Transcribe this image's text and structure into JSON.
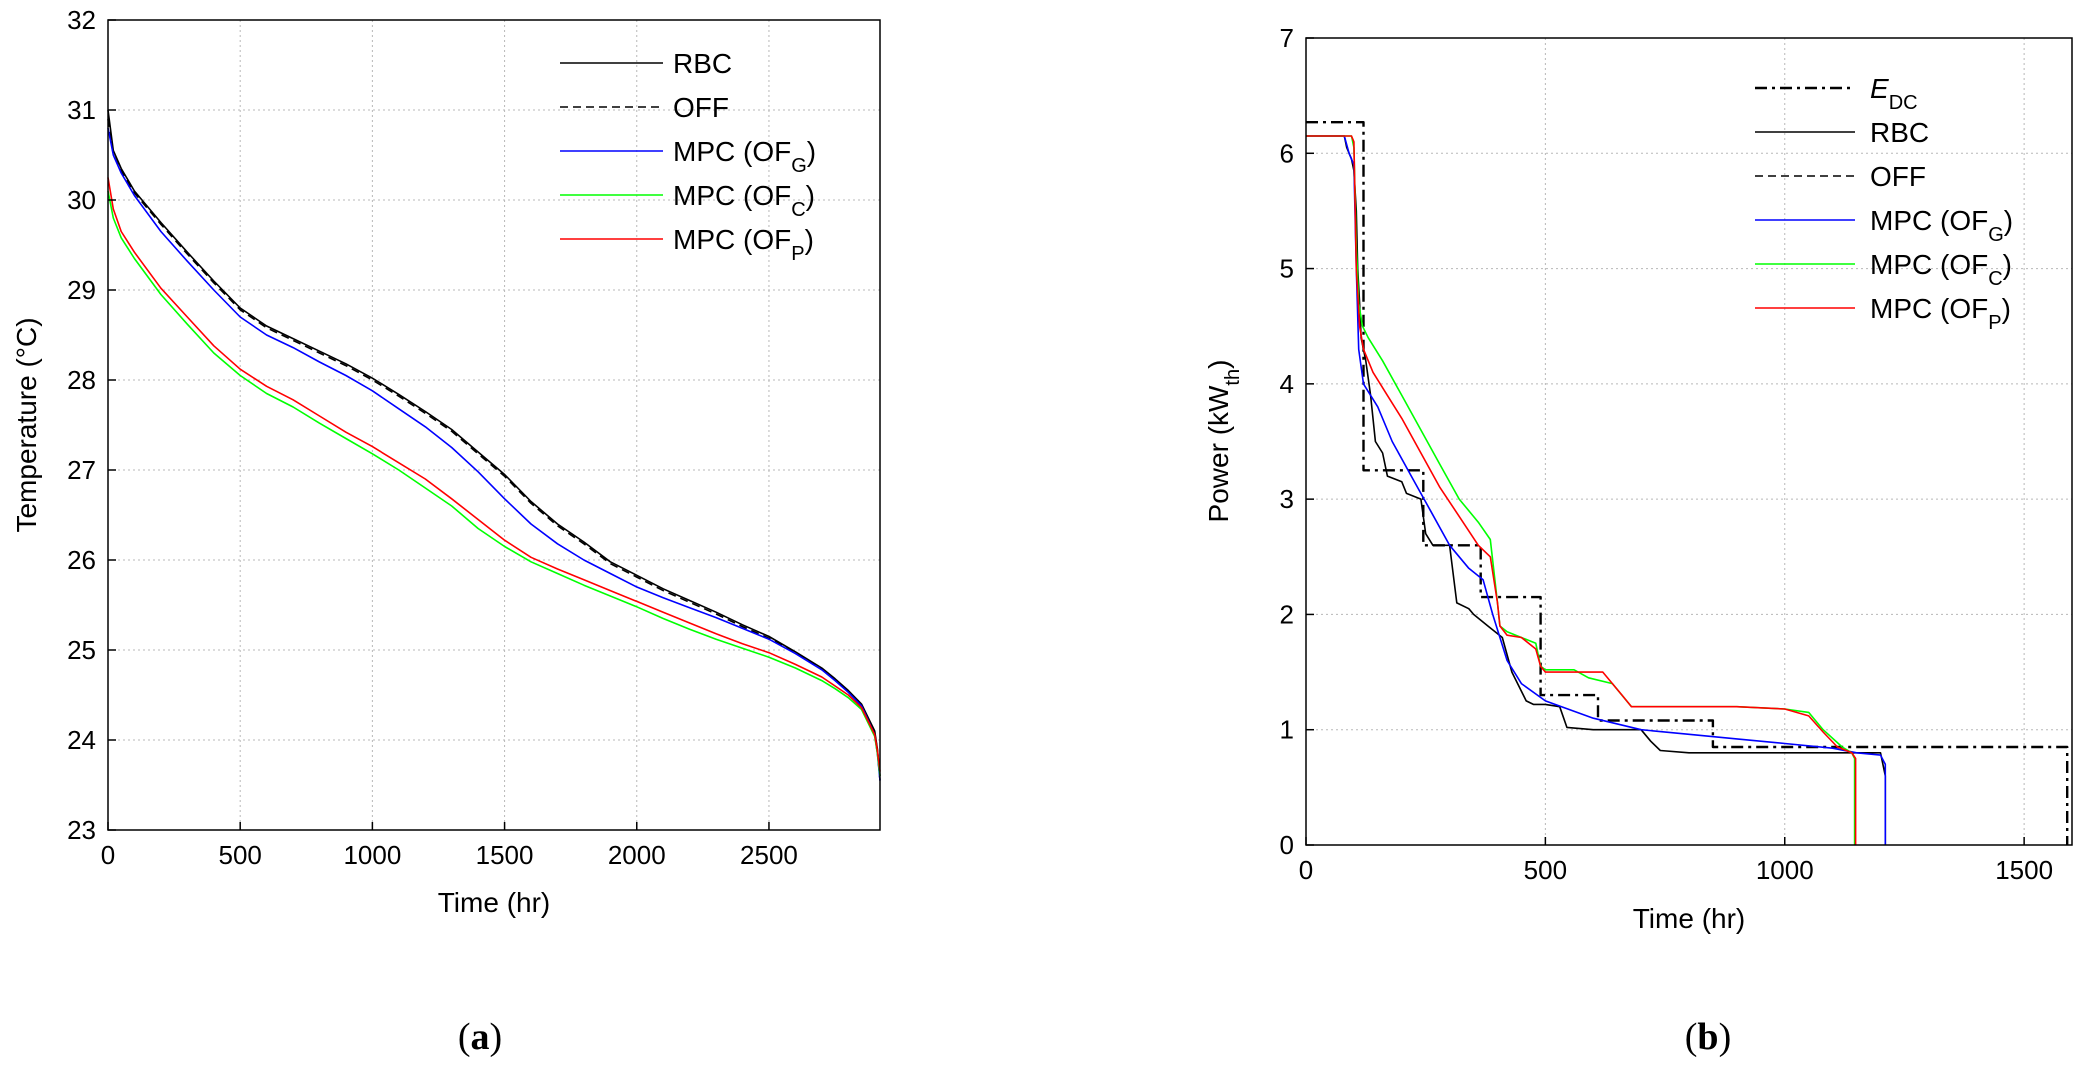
{
  "captions": {
    "a": "a",
    "b": "b"
  },
  "colors": {
    "RBC": "#000000",
    "OFF": "#000000",
    "G": "#0000ff",
    "C": "#00ff00",
    "P": "#ff0000",
    "E_DC": "#000000",
    "grid": "#b8b8b8"
  },
  "chart_data": [
    {
      "type": "line",
      "panel": "a",
      "title": "",
      "xlabel": "Time (hr)",
      "ylabel": "Temperature (°C)",
      "xlim": [
        0,
        2920
      ],
      "ylim": [
        23,
        32
      ],
      "xticks": [
        0,
        500,
        1000,
        1500,
        2000,
        2500
      ],
      "yticks": [
        23,
        24,
        25,
        26,
        27,
        28,
        29,
        30,
        31,
        32
      ],
      "grid": true,
      "legend_position": "top-right",
      "series": [
        {
          "key": "RBC",
          "name": "RBC",
          "dash": "solid",
          "x": [
            0,
            20,
            50,
            100,
            200,
            300,
            400,
            500,
            600,
            700,
            800,
            900,
            1000,
            1100,
            1200,
            1300,
            1400,
            1500,
            1600,
            1700,
            1800,
            1900,
            2000,
            2100,
            2200,
            2300,
            2400,
            2500,
            2600,
            2700,
            2750,
            2800,
            2850,
            2900,
            2910,
            2920
          ],
          "y": [
            31.0,
            30.55,
            30.35,
            30.1,
            29.75,
            29.42,
            29.1,
            28.8,
            28.6,
            28.46,
            28.32,
            28.18,
            28.02,
            27.84,
            27.65,
            27.45,
            27.2,
            26.95,
            26.65,
            26.4,
            26.2,
            25.98,
            25.83,
            25.68,
            25.55,
            25.42,
            25.28,
            25.15,
            24.98,
            24.8,
            24.68,
            24.55,
            24.4,
            24.1,
            23.9,
            23.6
          ]
        },
        {
          "key": "OFF",
          "name": "OFF",
          "dash": "dashed",
          "x": [
            0,
            20,
            50,
            100,
            200,
            300,
            400,
            500,
            600,
            700,
            800,
            900,
            1000,
            1100,
            1200,
            1300,
            1400,
            1500,
            1600,
            1700,
            1800,
            1900,
            2000,
            2100,
            2200,
            2300,
            2400,
            2500,
            2600,
            2700,
            2750,
            2800,
            2850,
            2900,
            2910,
            2920
          ],
          "y": [
            30.9,
            30.5,
            30.32,
            30.08,
            29.73,
            29.4,
            29.08,
            28.78,
            28.58,
            28.44,
            28.3,
            28.16,
            28.0,
            27.82,
            27.63,
            27.43,
            27.18,
            26.93,
            26.63,
            26.38,
            26.18,
            25.96,
            25.81,
            25.66,
            25.53,
            25.4,
            25.26,
            25.13,
            24.97,
            24.79,
            24.67,
            24.54,
            24.39,
            24.08,
            23.88,
            23.55
          ]
        },
        {
          "key": "G",
          "name": "MPC (OF",
          "sub": "G",
          "dash": "solid",
          "x": [
            0,
            20,
            50,
            100,
            200,
            300,
            400,
            500,
            600,
            700,
            800,
            900,
            1000,
            1100,
            1200,
            1300,
            1400,
            1500,
            1600,
            1700,
            1800,
            1900,
            2000,
            2100,
            2200,
            2300,
            2400,
            2500,
            2600,
            2700,
            2750,
            2800,
            2850,
            2900,
            2910,
            2920
          ],
          "y": [
            30.8,
            30.5,
            30.3,
            30.05,
            29.65,
            29.32,
            29.0,
            28.7,
            28.5,
            28.36,
            28.2,
            28.05,
            27.88,
            27.68,
            27.48,
            27.25,
            26.98,
            26.68,
            26.4,
            26.18,
            26.0,
            25.85,
            25.7,
            25.58,
            25.47,
            25.36,
            25.24,
            25.12,
            24.96,
            24.78,
            24.66,
            24.53,
            24.38,
            24.06,
            23.85,
            23.55
          ]
        },
        {
          "key": "C",
          "name": "MPC (OF",
          "sub": "C",
          "dash": "solid",
          "x": [
            0,
            20,
            50,
            100,
            200,
            300,
            400,
            500,
            600,
            700,
            800,
            900,
            1000,
            1100,
            1200,
            1300,
            1400,
            1500,
            1600,
            1700,
            1800,
            1900,
            2000,
            2100,
            2200,
            2300,
            2400,
            2500,
            2600,
            2700,
            2750,
            2800,
            2850,
            2900,
            2910,
            2920
          ],
          "y": [
            30.1,
            29.8,
            29.58,
            29.35,
            28.95,
            28.62,
            28.3,
            28.05,
            27.85,
            27.7,
            27.52,
            27.35,
            27.18,
            27.0,
            26.8,
            26.6,
            26.35,
            26.15,
            25.98,
            25.85,
            25.72,
            25.6,
            25.48,
            25.35,
            25.23,
            25.12,
            25.02,
            24.92,
            24.8,
            24.66,
            24.57,
            24.47,
            24.34,
            24.04,
            23.85,
            23.6
          ]
        },
        {
          "key": "P",
          "name": "MPC (OF",
          "sub": "P",
          "dash": "solid",
          "x": [
            0,
            20,
            50,
            100,
            200,
            300,
            400,
            500,
            600,
            700,
            800,
            900,
            1000,
            1100,
            1200,
            1300,
            1400,
            1500,
            1600,
            1700,
            1800,
            1900,
            2000,
            2100,
            2200,
            2300,
            2400,
            2500,
            2600,
            2700,
            2750,
            2800,
            2850,
            2900,
            2910,
            2920
          ],
          "y": [
            30.25,
            29.9,
            29.65,
            29.42,
            29.02,
            28.7,
            28.38,
            28.12,
            27.93,
            27.78,
            27.6,
            27.42,
            27.26,
            27.08,
            26.9,
            26.68,
            26.45,
            26.22,
            26.03,
            25.9,
            25.78,
            25.66,
            25.54,
            25.42,
            25.3,
            25.18,
            25.07,
            24.97,
            24.84,
            24.7,
            24.6,
            24.5,
            24.36,
            24.06,
            23.88,
            23.65
          ]
        }
      ]
    },
    {
      "type": "line",
      "panel": "b",
      "title": "",
      "xlabel": "Time (hr)",
      "ylabel": "Power (kW",
      "ylabel_sub": "th",
      "ylabel_end": ")",
      "xlim": [
        0,
        1600
      ],
      "ylim": [
        0,
        7
      ],
      "xticks": [
        0,
        500,
        1000,
        1500
      ],
      "yticks": [
        0,
        1,
        2,
        3,
        4,
        5,
        6,
        7
      ],
      "grid": true,
      "legend_position": "top-right",
      "series": [
        {
          "key": "E_DC",
          "name": "E",
          "sub": "DC",
          "dash": "dashdot",
          "x": [
            0,
            120,
            120,
            130,
            130,
            245,
            245,
            365,
            365,
            490,
            490,
            610,
            610,
            850,
            850,
            1590,
            1590
          ],
          "y": [
            6.27,
            6.27,
            3.25,
            3.25,
            3.25,
            3.25,
            2.6,
            2.6,
            2.15,
            2.15,
            1.3,
            1.3,
            1.08,
            1.08,
            0.85,
            0.85,
            0.0
          ]
        },
        {
          "key": "RBC",
          "name": "RBC",
          "dash": "solid",
          "x": [
            0,
            80,
            85,
            95,
            100,
            105,
            108,
            112,
            115,
            125,
            135,
            145,
            160,
            170,
            200,
            210,
            240,
            250,
            265,
            275,
            300,
            315,
            340,
            350,
            380,
            395,
            410,
            430,
            460,
            475,
            500,
            530,
            545,
            600,
            700,
            720,
            740,
            800,
            1000,
            1200,
            1210,
            1210
          ],
          "y": [
            6.15,
            6.15,
            6.05,
            5.95,
            5.85,
            5.5,
            5.0,
            4.7,
            4.4,
            4.2,
            3.9,
            3.5,
            3.4,
            3.2,
            3.15,
            3.05,
            3.0,
            2.7,
            2.6,
            2.6,
            2.6,
            2.1,
            2.05,
            2.0,
            1.9,
            1.85,
            1.8,
            1.5,
            1.25,
            1.22,
            1.22,
            1.2,
            1.02,
            1.0,
            1.0,
            0.9,
            0.82,
            0.8,
            0.8,
            0.8,
            0.6,
            0.0
          ]
        },
        {
          "key": "OFF",
          "name": "OFF",
          "dash": "dashed",
          "x": [],
          "y": []
        },
        {
          "key": "G",
          "name": "MPC (OF",
          "sub": "G",
          "dash": "solid",
          "x": [
            0,
            80,
            90,
            100,
            105,
            110,
            120,
            150,
            180,
            220,
            260,
            300,
            340,
            370,
            390,
            420,
            450,
            500,
            600,
            700,
            800,
            900,
            1000,
            1100,
            1150,
            1200,
            1210,
            1210
          ],
          "y": [
            6.15,
            6.15,
            6.0,
            5.9,
            5.0,
            4.3,
            4.0,
            3.8,
            3.5,
            3.2,
            2.9,
            2.6,
            2.4,
            2.3,
            2.0,
            1.6,
            1.4,
            1.25,
            1.1,
            1.0,
            0.96,
            0.92,
            0.88,
            0.84,
            0.8,
            0.78,
            0.7,
            0.0
          ]
        },
        {
          "key": "C",
          "name": "MPC (OF",
          "sub": "C",
          "dash": "solid",
          "x": [
            0,
            95,
            100,
            105,
            110,
            118,
            130,
            160,
            200,
            240,
            280,
            320,
            360,
            385,
            400,
            405,
            420,
            450,
            480,
            490,
            500,
            560,
            590,
            640,
            680,
            700,
            900,
            1000,
            1050,
            1080,
            1120,
            1140,
            1146,
            1146
          ],
          "y": [
            6.15,
            6.15,
            6.05,
            5.2,
            4.7,
            4.5,
            4.4,
            4.2,
            3.9,
            3.6,
            3.3,
            3.0,
            2.8,
            2.65,
            2.1,
            1.9,
            1.85,
            1.8,
            1.75,
            1.55,
            1.52,
            1.52,
            1.45,
            1.4,
            1.2,
            1.2,
            1.2,
            1.18,
            1.15,
            1.0,
            0.85,
            0.8,
            0.75,
            0.0
          ]
        },
        {
          "key": "P",
          "name": "MPC (OF",
          "sub": "P",
          "dash": "solid",
          "x": [
            0,
            95,
            100,
            105,
            112,
            120,
            140,
            170,
            200,
            240,
            280,
            320,
            360,
            385,
            400,
            405,
            420,
            450,
            480,
            490,
            500,
            560,
            620,
            660,
            680,
            700,
            900,
            1000,
            1050,
            1080,
            1110,
            1140,
            1148,
            1148
          ],
          "y": [
            6.15,
            6.15,
            6.1,
            5.0,
            4.5,
            4.3,
            4.1,
            3.9,
            3.7,
            3.4,
            3.1,
            2.85,
            2.6,
            2.5,
            2.1,
            1.9,
            1.82,
            1.8,
            1.7,
            1.55,
            1.5,
            1.5,
            1.5,
            1.3,
            1.2,
            1.2,
            1.2,
            1.18,
            1.12,
            0.98,
            0.85,
            0.8,
            0.75,
            0.0
          ]
        }
      ]
    }
  ]
}
